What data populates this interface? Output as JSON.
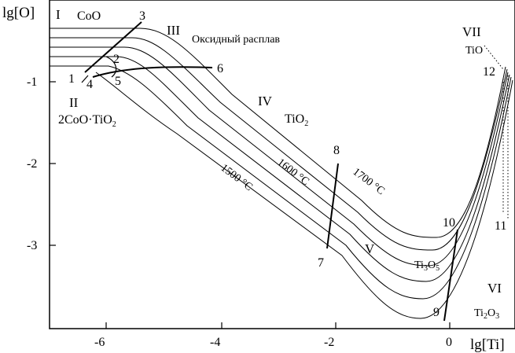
{
  "axes": {
    "y_label": "lg[O]",
    "x_label": "lg[Ti]",
    "x_ticks": [
      "-6",
      "-4",
      "-2",
      "0"
    ],
    "y_ticks": [
      "-1",
      "-2",
      "-3"
    ]
  },
  "regions": {
    "r1": "I",
    "r1_phase": "CoO",
    "r2": "II",
    "r2_phase": "2CoO·TiO",
    "r2_sub": "2",
    "r3": "III",
    "r3_phase": "Оксидный расплав",
    "r4": "IV",
    "r4_phase": "TiO",
    "r4_sub": "2",
    "r5": "V",
    "r6": "VI",
    "r6_phase": "Ti",
    "r6_sub1": "2",
    "r6_phase2": "O",
    "r6_sub2": "3",
    "r7": "VII",
    "r7_phase": "TiO",
    "ti3o5_a": "Ti",
    "ti3o5_sub1": "3",
    "ti3o5_b": "O",
    "ti3o5_sub2": "5"
  },
  "isotherms": {
    "t1500": "1500 °C",
    "t1600": "1600 °C",
    "t1700": "1700 °C"
  },
  "points": [
    "1",
    "2",
    "3",
    "4",
    "5",
    "6",
    "7",
    "8",
    "9",
    "10",
    "11",
    "12"
  ]
}
